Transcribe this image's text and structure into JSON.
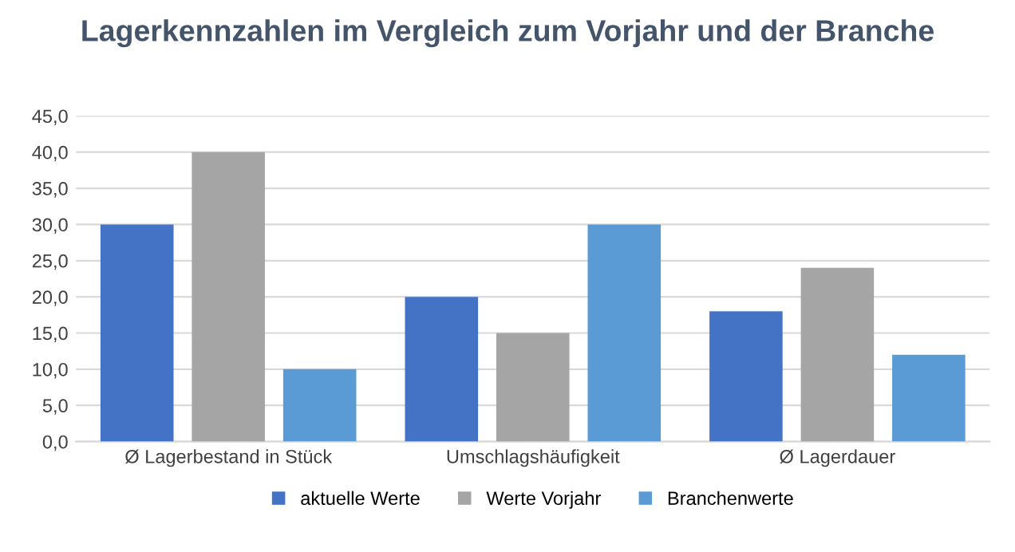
{
  "chart_data": {
    "type": "bar",
    "title": "Lagerkennzahlen im Vergleich zum Vorjahr und der Branche",
    "categories": [
      "Ø Lagerbestand in Stück",
      "Umschlagshäufigkeit",
      "Ø Lagerdauer"
    ],
    "series": [
      {
        "name": "aktuelle Werte",
        "color": "#4472c4",
        "values": [
          30,
          20,
          18
        ]
      },
      {
        "name": "Werte Vorjahr",
        "color": "#a5a5a5",
        "values": [
          40,
          15,
          24
        ]
      },
      {
        "name": "Branchenwerte",
        "color": "#5b9bd5",
        "values": [
          10,
          30,
          12
        ]
      }
    ],
    "ylim": [
      0,
      45
    ],
    "yticks": [
      {
        "value": 0,
        "label": "0,0"
      },
      {
        "value": 5,
        "label": "5,0"
      },
      {
        "value": 10,
        "label": "10,0"
      },
      {
        "value": 15,
        "label": "15,0"
      },
      {
        "value": 20,
        "label": "20,0"
      },
      {
        "value": 25,
        "label": "25,0"
      },
      {
        "value": 30,
        "label": "30,0"
      },
      {
        "value": 35,
        "label": "35,0"
      },
      {
        "value": 40,
        "label": "40,0"
      },
      {
        "value": 45,
        "label": "45,0"
      }
    ],
    "grid": "y",
    "legend": "bottom"
  }
}
